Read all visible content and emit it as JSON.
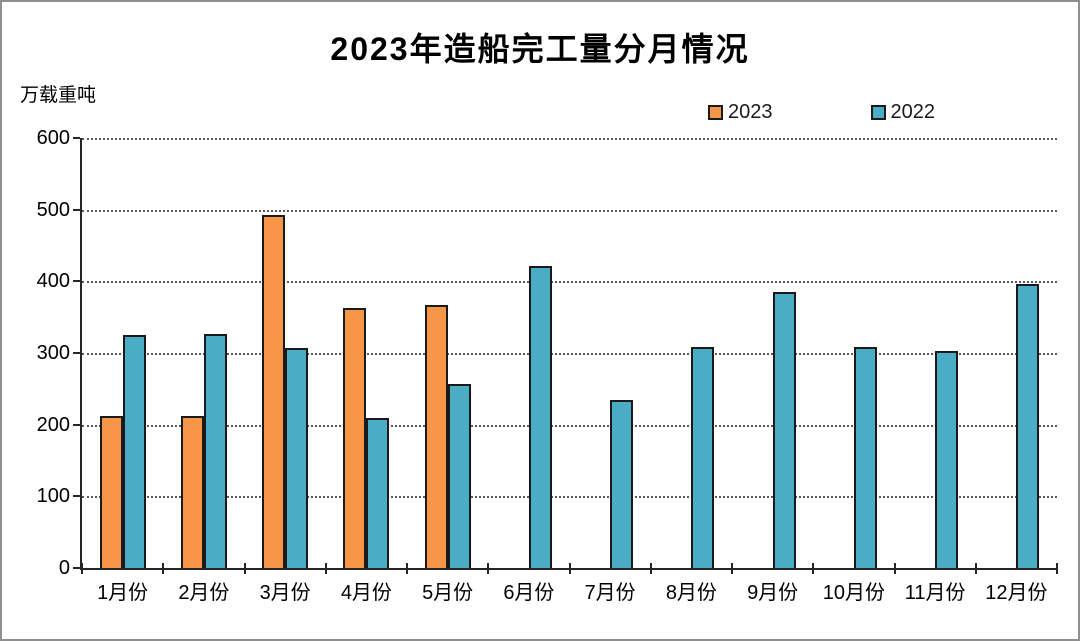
{
  "chart_data": {
    "type": "bar",
    "title": "2023年造船完工量分月情况",
    "ylabel": "万载重吨",
    "xlabel": "",
    "categories": [
      "1月份",
      "2月份",
      "3月份",
      "4月份",
      "5月份",
      "6月份",
      "7月份",
      "8月份",
      "9月份",
      "10月份",
      "11月份",
      "12月份"
    ],
    "series": [
      {
        "name": "2023",
        "color": "#F79646",
        "values": [
          212,
          212,
          493,
          363,
          367,
          null,
          null,
          null,
          null,
          null,
          null,
          null
        ]
      },
      {
        "name": "2022",
        "color": "#4BACC6",
        "values": [
          325,
          327,
          307,
          210,
          257,
          421,
          235,
          309,
          385,
          308,
          303,
          396
        ]
      }
    ],
    "ylim": [
      0,
      600
    ],
    "ytick_step": 100,
    "grid": "horizontal-dotted",
    "legend_position": "top-right",
    "colors": {
      "bar_border": "#1A1A1A",
      "axis": "#262626",
      "gridline": "#595959",
      "text": "#000000",
      "frame_border": "#8F8F8F",
      "background": "#FFFFFF"
    }
  }
}
